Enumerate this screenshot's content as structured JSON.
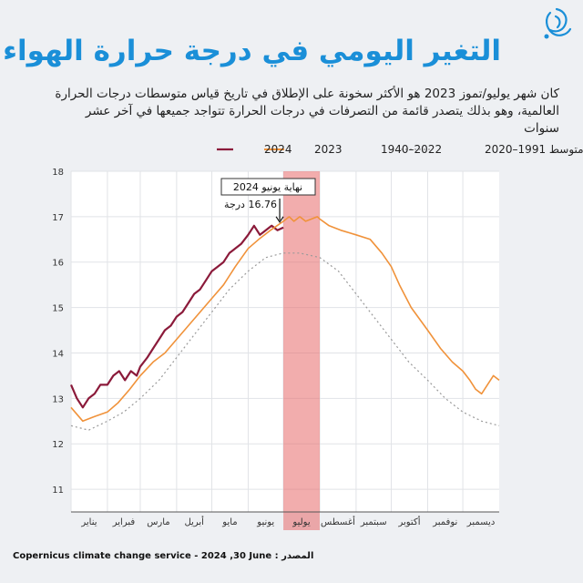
{
  "header": {
    "title": "التغير اليومي في درجة حرارة الهواء",
    "subtitle": "كان شهر يوليو/تموز 2023 هو الأكثر سخونة على الإطلاق في تاريخ قياس متوسطات درجات الحرارة العالمية، وهو بذلك يتصدر قائمة من التصرفات في درجات الحرارة تتواجد جميعها في آخر عشر سنوات"
  },
  "footer": {
    "source": "Copernicus climate change service - 2024 ,30 June : المصدر"
  },
  "colors": {
    "s2024": "#8b1a3a",
    "s2023": "#f0923a",
    "range": "#9aa0aa",
    "avg": "#9a9a9a",
    "highlight": "#e86a6a",
    "title": "#1a8fd8"
  },
  "chart_data": {
    "type": "line",
    "ylim": [
      10.5,
      18
    ],
    "yticks": [
      11,
      12,
      13,
      14,
      15,
      16,
      17,
      18
    ],
    "xlim": [
      0,
      365
    ],
    "months": [
      {
        "label": "يناير",
        "start": 0
      },
      {
        "label": "فبراير",
        "start": 31
      },
      {
        "label": "مارس",
        "start": 59
      },
      {
        "label": "أبريل",
        "start": 90
      },
      {
        "label": "مايو",
        "start": 120
      },
      {
        "label": "يونيو",
        "start": 151
      },
      {
        "label": "يوليو",
        "start": 181
      },
      {
        "label": "أغسطس",
        "start": 212
      },
      {
        "label": "سبتمبر",
        "start": 243
      },
      {
        "label": "أكتوبر",
        "start": 273
      },
      {
        "label": "نوفمبر",
        "start": 304
      },
      {
        "label": "ديسمبر",
        "start": 334
      }
    ],
    "highlight": {
      "x_start": 181,
      "x_end": 212
    },
    "legend": {
      "s2024": "2024",
      "s2023": "2023",
      "range": "2022–1940",
      "avg": "متوسط 1991–2020"
    },
    "annotation": {
      "label": "نهاية يونيو 2024",
      "value_text": "16.76 درجة",
      "x": 181,
      "y": 16.76
    },
    "series": [
      {
        "name": "2024",
        "key": "s2024",
        "x": [
          0,
          5,
          10,
          15,
          20,
          25,
          31,
          36,
          41,
          46,
          51,
          56,
          59,
          65,
          70,
          75,
          80,
          85,
          90,
          95,
          100,
          105,
          110,
          115,
          120,
          125,
          130,
          135,
          140,
          145,
          151,
          156,
          161,
          166,
          171,
          176,
          181
        ],
        "y": [
          13.3,
          13.0,
          12.8,
          13.0,
          13.1,
          13.3,
          13.3,
          13.5,
          13.6,
          13.4,
          13.6,
          13.5,
          13.7,
          13.9,
          14.1,
          14.3,
          14.5,
          14.6,
          14.8,
          14.9,
          15.1,
          15.3,
          15.4,
          15.6,
          15.8,
          15.9,
          16.0,
          16.2,
          16.3,
          16.4,
          16.6,
          16.8,
          16.6,
          16.7,
          16.8,
          16.7,
          16.76
        ]
      },
      {
        "name": "2023",
        "key": "s2023",
        "x": [
          0,
          10,
          20,
          31,
          40,
          50,
          59,
          70,
          80,
          90,
          100,
          110,
          120,
          130,
          140,
          151,
          160,
          170,
          181,
          186,
          190,
          195,
          200,
          205,
          210,
          212,
          220,
          230,
          243,
          255,
          265,
          273,
          280,
          290,
          304,
          315,
          325,
          334,
          340,
          345,
          350,
          355,
          360,
          365
        ],
        "y": [
          12.8,
          12.5,
          12.6,
          12.7,
          12.9,
          13.2,
          13.5,
          13.8,
          14.0,
          14.3,
          14.6,
          14.9,
          15.2,
          15.5,
          15.9,
          16.3,
          16.5,
          16.7,
          16.9,
          17.0,
          16.9,
          17.0,
          16.9,
          16.95,
          17.0,
          16.95,
          16.8,
          16.7,
          16.6,
          16.5,
          16.2,
          15.9,
          15.5,
          15.0,
          14.5,
          14.1,
          13.8,
          13.6,
          13.4,
          13.2,
          13.1,
          13.3,
          13.5,
          13.4
        ]
      },
      {
        "name": "متوسط 1991–2020",
        "key": "avg",
        "x": [
          0,
          15,
          31,
          45,
          59,
          75,
          90,
          105,
          120,
          135,
          151,
          166,
          181,
          195,
          212,
          228,
          243,
          258,
          273,
          288,
          304,
          319,
          334,
          350,
          365
        ],
        "y": [
          12.4,
          12.3,
          12.5,
          12.7,
          13.0,
          13.4,
          13.9,
          14.4,
          14.9,
          15.4,
          15.8,
          16.1,
          16.2,
          16.2,
          16.1,
          15.8,
          15.3,
          14.8,
          14.3,
          13.8,
          13.4,
          13.0,
          12.7,
          12.5,
          12.4
        ]
      }
    ]
  }
}
